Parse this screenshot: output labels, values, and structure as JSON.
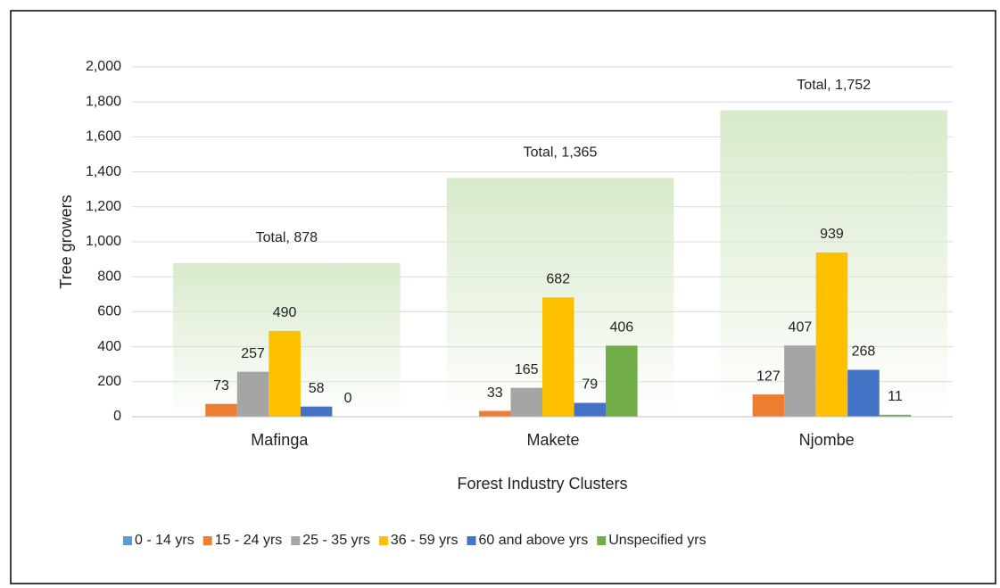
{
  "chart_data": {
    "type": "bar",
    "x_label": "Forest Industry Clusters",
    "y_label": "Tree growers",
    "categories": [
      "Mafinga",
      "Makete",
      "Njombe"
    ],
    "series": [
      {
        "name": "0 - 14 yrs",
        "color": "#5b9bd5",
        "values": [
          0,
          0,
          0
        ],
        "show_labels": false
      },
      {
        "name": "15 - 24 yrs",
        "color": "#ed7d31",
        "values": [
          73,
          33,
          127
        ]
      },
      {
        "name": "25 - 35 yrs",
        "color": "#a5a5a5",
        "values": [
          257,
          165,
          407
        ]
      },
      {
        "name": "36 - 59 yrs",
        "color": "#ffc000",
        "values": [
          490,
          682,
          939
        ]
      },
      {
        "name": "60 and above yrs",
        "color": "#4472c4",
        "values": [
          58,
          79,
          268
        ]
      },
      {
        "name": "Unspecified yrs",
        "color": "#70ad47",
        "values": [
          0,
          406,
          11
        ]
      }
    ],
    "total": {
      "name": "Total",
      "color": "#e2efda",
      "values": [
        878,
        1365,
        1752
      ],
      "value_labels": [
        "Total, 878",
        "Total, 1,365",
        "Total, 1,752"
      ]
    },
    "ylim": [
      0,
      2000
    ],
    "yticks": [
      0,
      200,
      400,
      600,
      800,
      {
        "value": 1000,
        "label": "1,000"
      },
      {
        "value": 1200,
        "label": "1,200"
      },
      {
        "value": 1400,
        "label": "1,400"
      },
      {
        "value": 1600,
        "label": "1,600"
      },
      {
        "value": 1800,
        "label": "1,800"
      },
      {
        "value": 2000,
        "label": "2,000"
      }
    ],
    "grid": true,
    "legend": "bottom"
  }
}
